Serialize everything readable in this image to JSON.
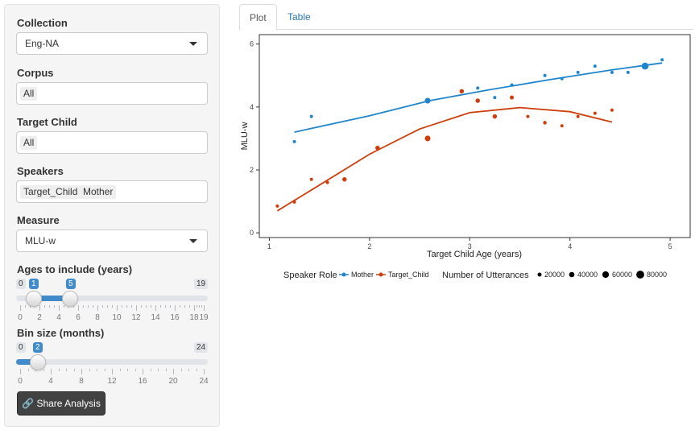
{
  "sidebar": {
    "collection": {
      "label": "Collection",
      "value": "Eng-NA"
    },
    "corpus": {
      "label": "Corpus",
      "chips": [
        "All"
      ]
    },
    "target_child": {
      "label": "Target Child",
      "chips": [
        "All"
      ]
    },
    "speakers": {
      "label": "Speakers",
      "chips": [
        "Target_Child",
        "Mother"
      ]
    },
    "measure": {
      "label": "Measure",
      "value": "MLU-w"
    },
    "ages": {
      "label": "Ages to include (years)",
      "min": "0",
      "max": "19",
      "from": "1",
      "to": "5",
      "ticks": [
        "0",
        "2",
        "4",
        "6",
        "8",
        "10",
        "12",
        "14",
        "16",
        "18",
        "19"
      ]
    },
    "bin": {
      "label": "Bin size (months)",
      "min": "0",
      "max": "24",
      "value": "2",
      "ticks": [
        "0",
        "4",
        "8",
        "12",
        "16",
        "20",
        "24"
      ]
    },
    "share_button": "Share Analysis"
  },
  "tabs": [
    {
      "label": "Plot",
      "active": true
    },
    {
      "label": "Table",
      "active": false
    }
  ],
  "colors": {
    "mother": "#1f85cc",
    "target_child": "#cc3f0c",
    "accent": "#428bca"
  },
  "chart_data": {
    "type": "scatter",
    "xlabel": "Target Child Age (years)",
    "ylabel": "MLU-w",
    "xlim": [
      0.9,
      5.2
    ],
    "ylim": [
      -0.15,
      6.3
    ],
    "xticks": [
      1,
      2,
      3,
      4,
      5
    ],
    "yticks": [
      0,
      2,
      4,
      6
    ],
    "legend": {
      "placement": "bottom",
      "speaker_title": "Speaker Role",
      "size_title": "Number of Utterances",
      "size_entries": [
        "20000",
        "40000",
        "60000",
        "80000"
      ]
    },
    "series": [
      {
        "name": "Mother",
        "color": "#1f85cc",
        "points": [
          {
            "x": 1.25,
            "y": 2.9,
            "n": 12000
          },
          {
            "x": 1.42,
            "y": 3.7,
            "n": 4000
          },
          {
            "x": 2.58,
            "y": 4.2,
            "n": 40000
          },
          {
            "x": 3.08,
            "y": 4.6,
            "n": 10000
          },
          {
            "x": 3.25,
            "y": 4.3,
            "n": 12000
          },
          {
            "x": 3.42,
            "y": 4.7,
            "n": 8000
          },
          {
            "x": 3.75,
            "y": 5.0,
            "n": 12000
          },
          {
            "x": 3.92,
            "y": 4.9,
            "n": 8000
          },
          {
            "x": 4.08,
            "y": 5.1,
            "n": 8000
          },
          {
            "x": 4.25,
            "y": 5.3,
            "n": 8000
          },
          {
            "x": 4.42,
            "y": 5.1,
            "n": 6000
          },
          {
            "x": 4.58,
            "y": 5.1,
            "n": 6000
          },
          {
            "x": 4.75,
            "y": 5.3,
            "n": 60000
          },
          {
            "x": 4.92,
            "y": 5.5,
            "n": 6000
          }
        ],
        "trend": [
          {
            "x": 1.25,
            "y": 3.2
          },
          {
            "x": 2.0,
            "y": 3.72
          },
          {
            "x": 2.6,
            "y": 4.2
          },
          {
            "x": 3.2,
            "y": 4.55
          },
          {
            "x": 3.8,
            "y": 4.87
          },
          {
            "x": 4.4,
            "y": 5.17
          },
          {
            "x": 4.92,
            "y": 5.4
          }
        ]
      },
      {
        "name": "Target_Child",
        "color": "#cc3f0c",
        "points": [
          {
            "x": 1.08,
            "y": 0.85,
            "n": 4000
          },
          {
            "x": 1.25,
            "y": 0.98,
            "n": 6000
          },
          {
            "x": 1.42,
            "y": 1.7,
            "n": 6000
          },
          {
            "x": 1.58,
            "y": 1.6,
            "n": 10000
          },
          {
            "x": 1.75,
            "y": 1.7,
            "n": 24000
          },
          {
            "x": 2.08,
            "y": 2.7,
            "n": 24000
          },
          {
            "x": 2.58,
            "y": 3.0,
            "n": 40000
          },
          {
            "x": 2.92,
            "y": 4.5,
            "n": 24000
          },
          {
            "x": 3.08,
            "y": 4.2,
            "n": 24000
          },
          {
            "x": 3.25,
            "y": 3.7,
            "n": 24000
          },
          {
            "x": 3.42,
            "y": 4.3,
            "n": 20000
          },
          {
            "x": 3.58,
            "y": 3.7,
            "n": 12000
          },
          {
            "x": 3.75,
            "y": 3.5,
            "n": 16000
          },
          {
            "x": 3.92,
            "y": 3.4,
            "n": 10000
          },
          {
            "x": 4.08,
            "y": 3.7,
            "n": 12000
          },
          {
            "x": 4.25,
            "y": 3.8,
            "n": 12000
          },
          {
            "x": 4.42,
            "y": 3.9,
            "n": 8000
          }
        ],
        "trend": [
          {
            "x": 1.08,
            "y": 0.7
          },
          {
            "x": 1.5,
            "y": 1.52
          },
          {
            "x": 2.0,
            "y": 2.5
          },
          {
            "x": 2.5,
            "y": 3.3
          },
          {
            "x": 3.0,
            "y": 3.82
          },
          {
            "x": 3.5,
            "y": 3.98
          },
          {
            "x": 4.0,
            "y": 3.85
          },
          {
            "x": 4.42,
            "y": 3.52
          }
        ]
      }
    ]
  }
}
